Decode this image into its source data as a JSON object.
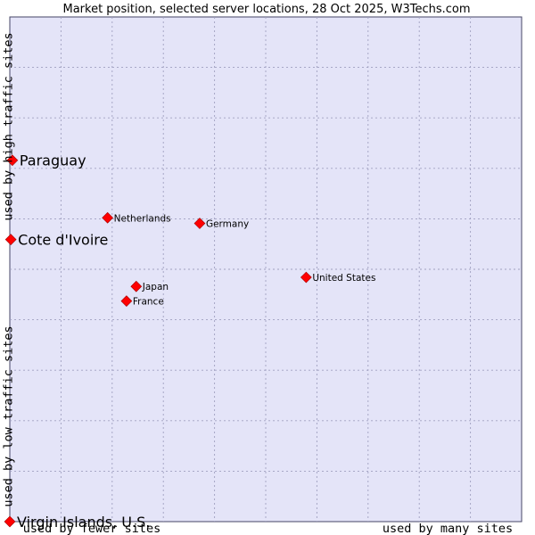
{
  "chart_data": {
    "type": "scatter",
    "title": "Market position, selected server locations, 28 Oct 2025, W3Techs.com",
    "x_axis": {
      "low_label": "used by fewer sites",
      "high_label": "used by many sites",
      "range": [
        0,
        100
      ]
    },
    "y_axis": {
      "low_label": "used by low traffic sites",
      "high_label": "used by high traffic sites",
      "range": [
        0,
        100
      ]
    },
    "grid": true,
    "colors": {
      "plot_bg": "#e4e4f8",
      "marker": "#ff0000",
      "marker_edge": "#a00000"
    },
    "points": [
      {
        "label": "Paraguay",
        "x": 0.5,
        "y": 71.6,
        "emphasis": true
      },
      {
        "label": "Cote d'Ivoire",
        "x": 0.2,
        "y": 55.9,
        "emphasis": true
      },
      {
        "label": "Virgin Islands, U.S.",
        "x": 0.0,
        "y": 0.0,
        "emphasis": true
      },
      {
        "label": "Netherlands",
        "x": 19.1,
        "y": 60.2,
        "emphasis": false
      },
      {
        "label": "Germany",
        "x": 37.1,
        "y": 59.1,
        "emphasis": false
      },
      {
        "label": "United States",
        "x": 57.9,
        "y": 48.4,
        "emphasis": false
      },
      {
        "label": "Japan",
        "x": 24.7,
        "y": 46.6,
        "emphasis": false
      },
      {
        "label": "France",
        "x": 22.8,
        "y": 43.7,
        "emphasis": false
      }
    ]
  }
}
